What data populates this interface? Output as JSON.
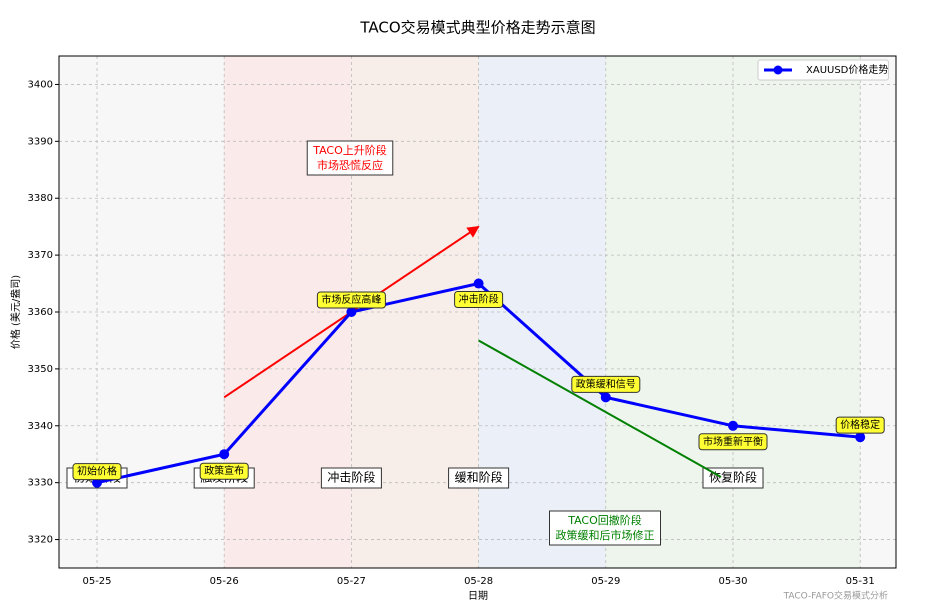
{
  "chart_data": {
    "type": "line",
    "title": "TACO交易模式典型价格走势示意图",
    "x_label": "日期",
    "y_label": "价格 (美元/盎司)",
    "categories": [
      "05-25",
      "05-26",
      "05-27",
      "05-28",
      "05-29",
      "05-30",
      "05-31"
    ],
    "series": [
      {
        "name": "XAUUSD价格走势",
        "color": "#0000ff",
        "values": [
          3330,
          3335,
          3360,
          3365,
          3345,
          3340,
          3338
        ]
      }
    ],
    "point_labels": [
      "初始价格",
      "政策宣布",
      "市场反应高峰",
      "冲击阶段",
      "政策缓和信号",
      "市场重新平衡",
      "价格稳定"
    ],
    "phase_labels": [
      "初始阶段",
      "触发阶段",
      "冲击阶段",
      "缓和阶段",
      "恢复阶段"
    ],
    "trend_arrows": [
      {
        "from": "05-26",
        "to": "05-28",
        "y_start": 3345,
        "y_end": 3375,
        "color": "#ff0000",
        "text": [
          "TACO上升阶段",
          "市场恐慌反应"
        ]
      },
      {
        "from": "05-28",
        "to": "05-30",
        "y_start": 3355,
        "y_end": 3331,
        "color": "#008000",
        "text": [
          "TACO回撤阶段",
          "政策缓和后市场修正"
        ]
      }
    ],
    "footer": "TACO-FAFO交易模式分析",
    "ylim": [
      3315,
      3405
    ],
    "yticks": [
      3320,
      3330,
      3340,
      3350,
      3360,
      3370,
      3380,
      3390,
      3400
    ],
    "grid": true,
    "legend": "upper right"
  }
}
